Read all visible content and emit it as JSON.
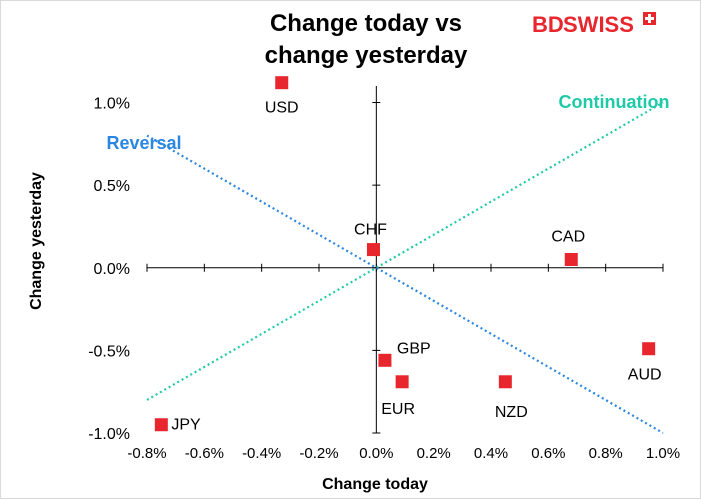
{
  "brand": {
    "text_bd": "BD",
    "text_swiss": "SWISS",
    "color": "#e8262d"
  },
  "chart_data": {
    "type": "scatter",
    "title_line1": "Change today vs",
    "title_line2": "change yesterday",
    "xlabel": "Change today",
    "ylabel": "Change yesterday",
    "xlim": [
      -0.8,
      1.0
    ],
    "ylim": [
      -1.0,
      1.1
    ],
    "x_ticks": [
      -0.8,
      -0.6,
      -0.4,
      -0.2,
      0.0,
      0.2,
      0.4,
      0.6,
      0.8,
      1.0
    ],
    "x_tick_labels": [
      "-0.8%",
      "-0.6%",
      "-0.4%",
      "-0.2%",
      "0.0%",
      "0.2%",
      "0.4%",
      "0.6%",
      "0.8%",
      "1.0%"
    ],
    "y_ticks": [
      -1.0,
      -0.5,
      0.0,
      0.5,
      1.0
    ],
    "y_tick_labels": [
      "-1.0%",
      "-0.5%",
      "0.0%",
      "0.5%",
      "1.0%"
    ],
    "points": [
      {
        "label": "USD",
        "x": -0.33,
        "y": 1.12
      },
      {
        "label": "CHF",
        "x": -0.01,
        "y": 0.11
      },
      {
        "label": "CAD",
        "x": 0.68,
        "y": 0.05
      },
      {
        "label": "AUD",
        "x": 0.95,
        "y": -0.49
      },
      {
        "label": "GBP",
        "x": 0.03,
        "y": -0.56
      },
      {
        "label": "EUR",
        "x": 0.09,
        "y": -0.69
      },
      {
        "label": "NZD",
        "x": 0.45,
        "y": -0.69
      },
      {
        "label": "JPY",
        "x": -0.75,
        "y": -0.95
      }
    ],
    "reference_lines": [
      {
        "name": "Continuation",
        "x": [
          -0.8,
          1.0
        ],
        "y": [
          -0.8,
          1.0
        ],
        "color": "#1fcaa8"
      },
      {
        "name": "Reversal",
        "x": [
          -0.8,
          1.0
        ],
        "y": [
          0.8,
          -1.0
        ],
        "color": "#2a86e0"
      }
    ],
    "marker_color": "#e8262d",
    "grid": false
  }
}
